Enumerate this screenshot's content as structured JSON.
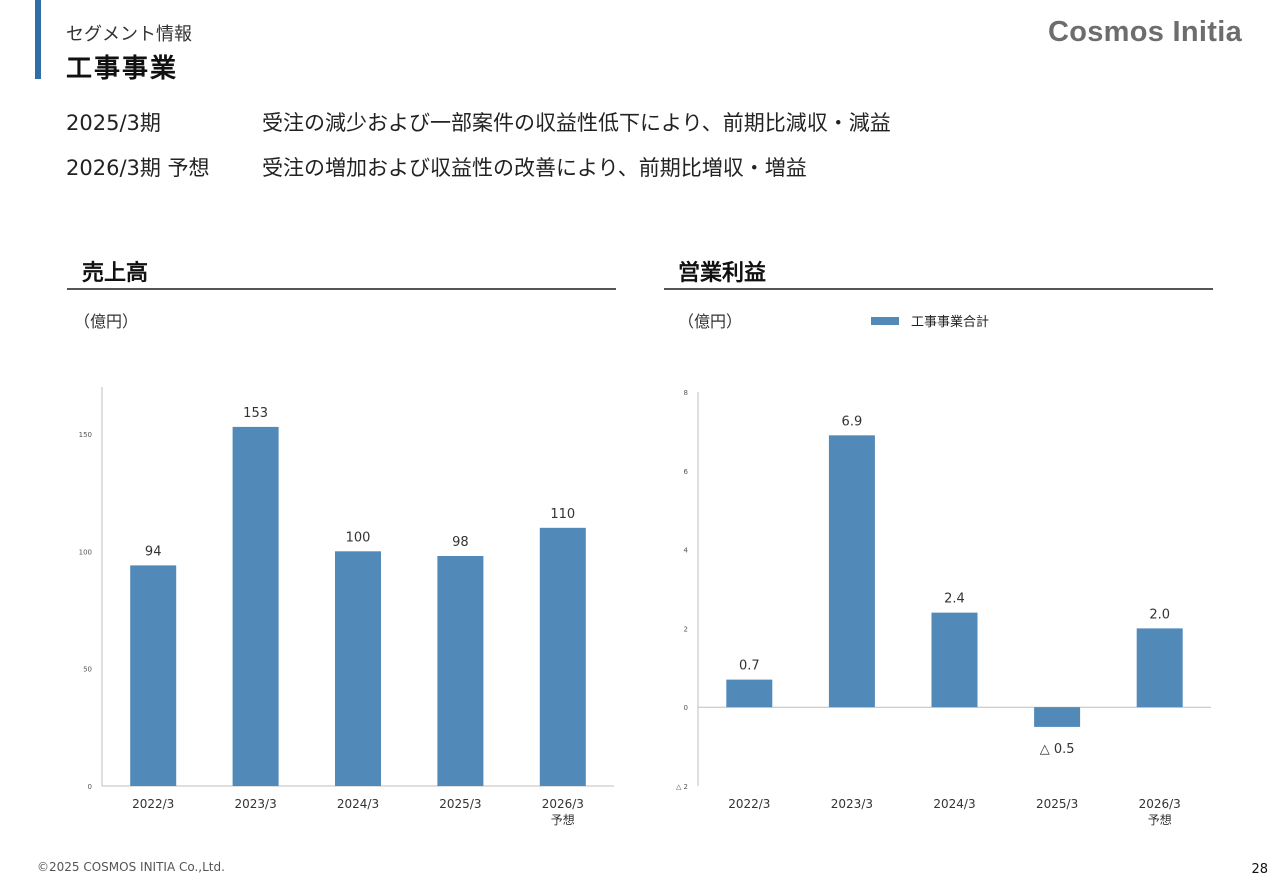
{
  "header": {
    "section_label": "セグメント情報",
    "segment_title": "工事事業",
    "logo": "Cosmos Initia"
  },
  "summary": [
    {
      "period": "2025/3期",
      "text": "受注の減少および一部案件の収益性低下により、前期比減収・減益"
    },
    {
      "period": "2026/3期 予想",
      "text": "受注の増加および収益性の改善により、前期比増収・増益"
    }
  ],
  "footer": {
    "copyright": "©2025 COSMOS INITIA Co.,Ltd.",
    "page_number": "28"
  },
  "colors": {
    "accent": "#2f6ea6",
    "bar": "#5189b9",
    "logo": "#6d6d6d"
  },
  "chart_data": [
    {
      "type": "bar",
      "title": "売上高",
      "unit": "（億円）",
      "categories": [
        "2022/3",
        "2023/3",
        "2024/3",
        "2025/3",
        "2026/3"
      ],
      "category_sublabels": [
        "",
        "",
        "",
        "",
        "予想"
      ],
      "values": [
        94,
        153,
        100,
        98,
        110
      ],
      "data_labels": [
        "94",
        "153",
        "100",
        "98",
        "110"
      ],
      "ylim": [
        0,
        170
      ],
      "yticks": [
        0,
        50,
        100,
        150
      ],
      "ytick_labels": [
        "0",
        "50",
        "100",
        "150"
      ],
      "grid": false
    },
    {
      "type": "bar",
      "title": "営業利益",
      "unit": "（億円）",
      "legend": "工事事業合計",
      "legend_position": "top",
      "categories": [
        "2022/3",
        "2023/3",
        "2024/3",
        "2025/3",
        "2026/3"
      ],
      "category_sublabels": [
        "",
        "",
        "",
        "",
        "予想"
      ],
      "values": [
        0.7,
        6.9,
        2.4,
        -0.5,
        2.0
      ],
      "data_labels": [
        "0.7",
        "6.9",
        "2.4",
        "△ 0.5",
        "2.0"
      ],
      "ylim": [
        -2,
        8
      ],
      "yticks": [
        -2,
        0,
        2,
        4,
        6,
        8
      ],
      "ytick_labels": [
        "△ 2",
        "0",
        "2",
        "4",
        "6",
        "8"
      ],
      "grid": false
    }
  ]
}
